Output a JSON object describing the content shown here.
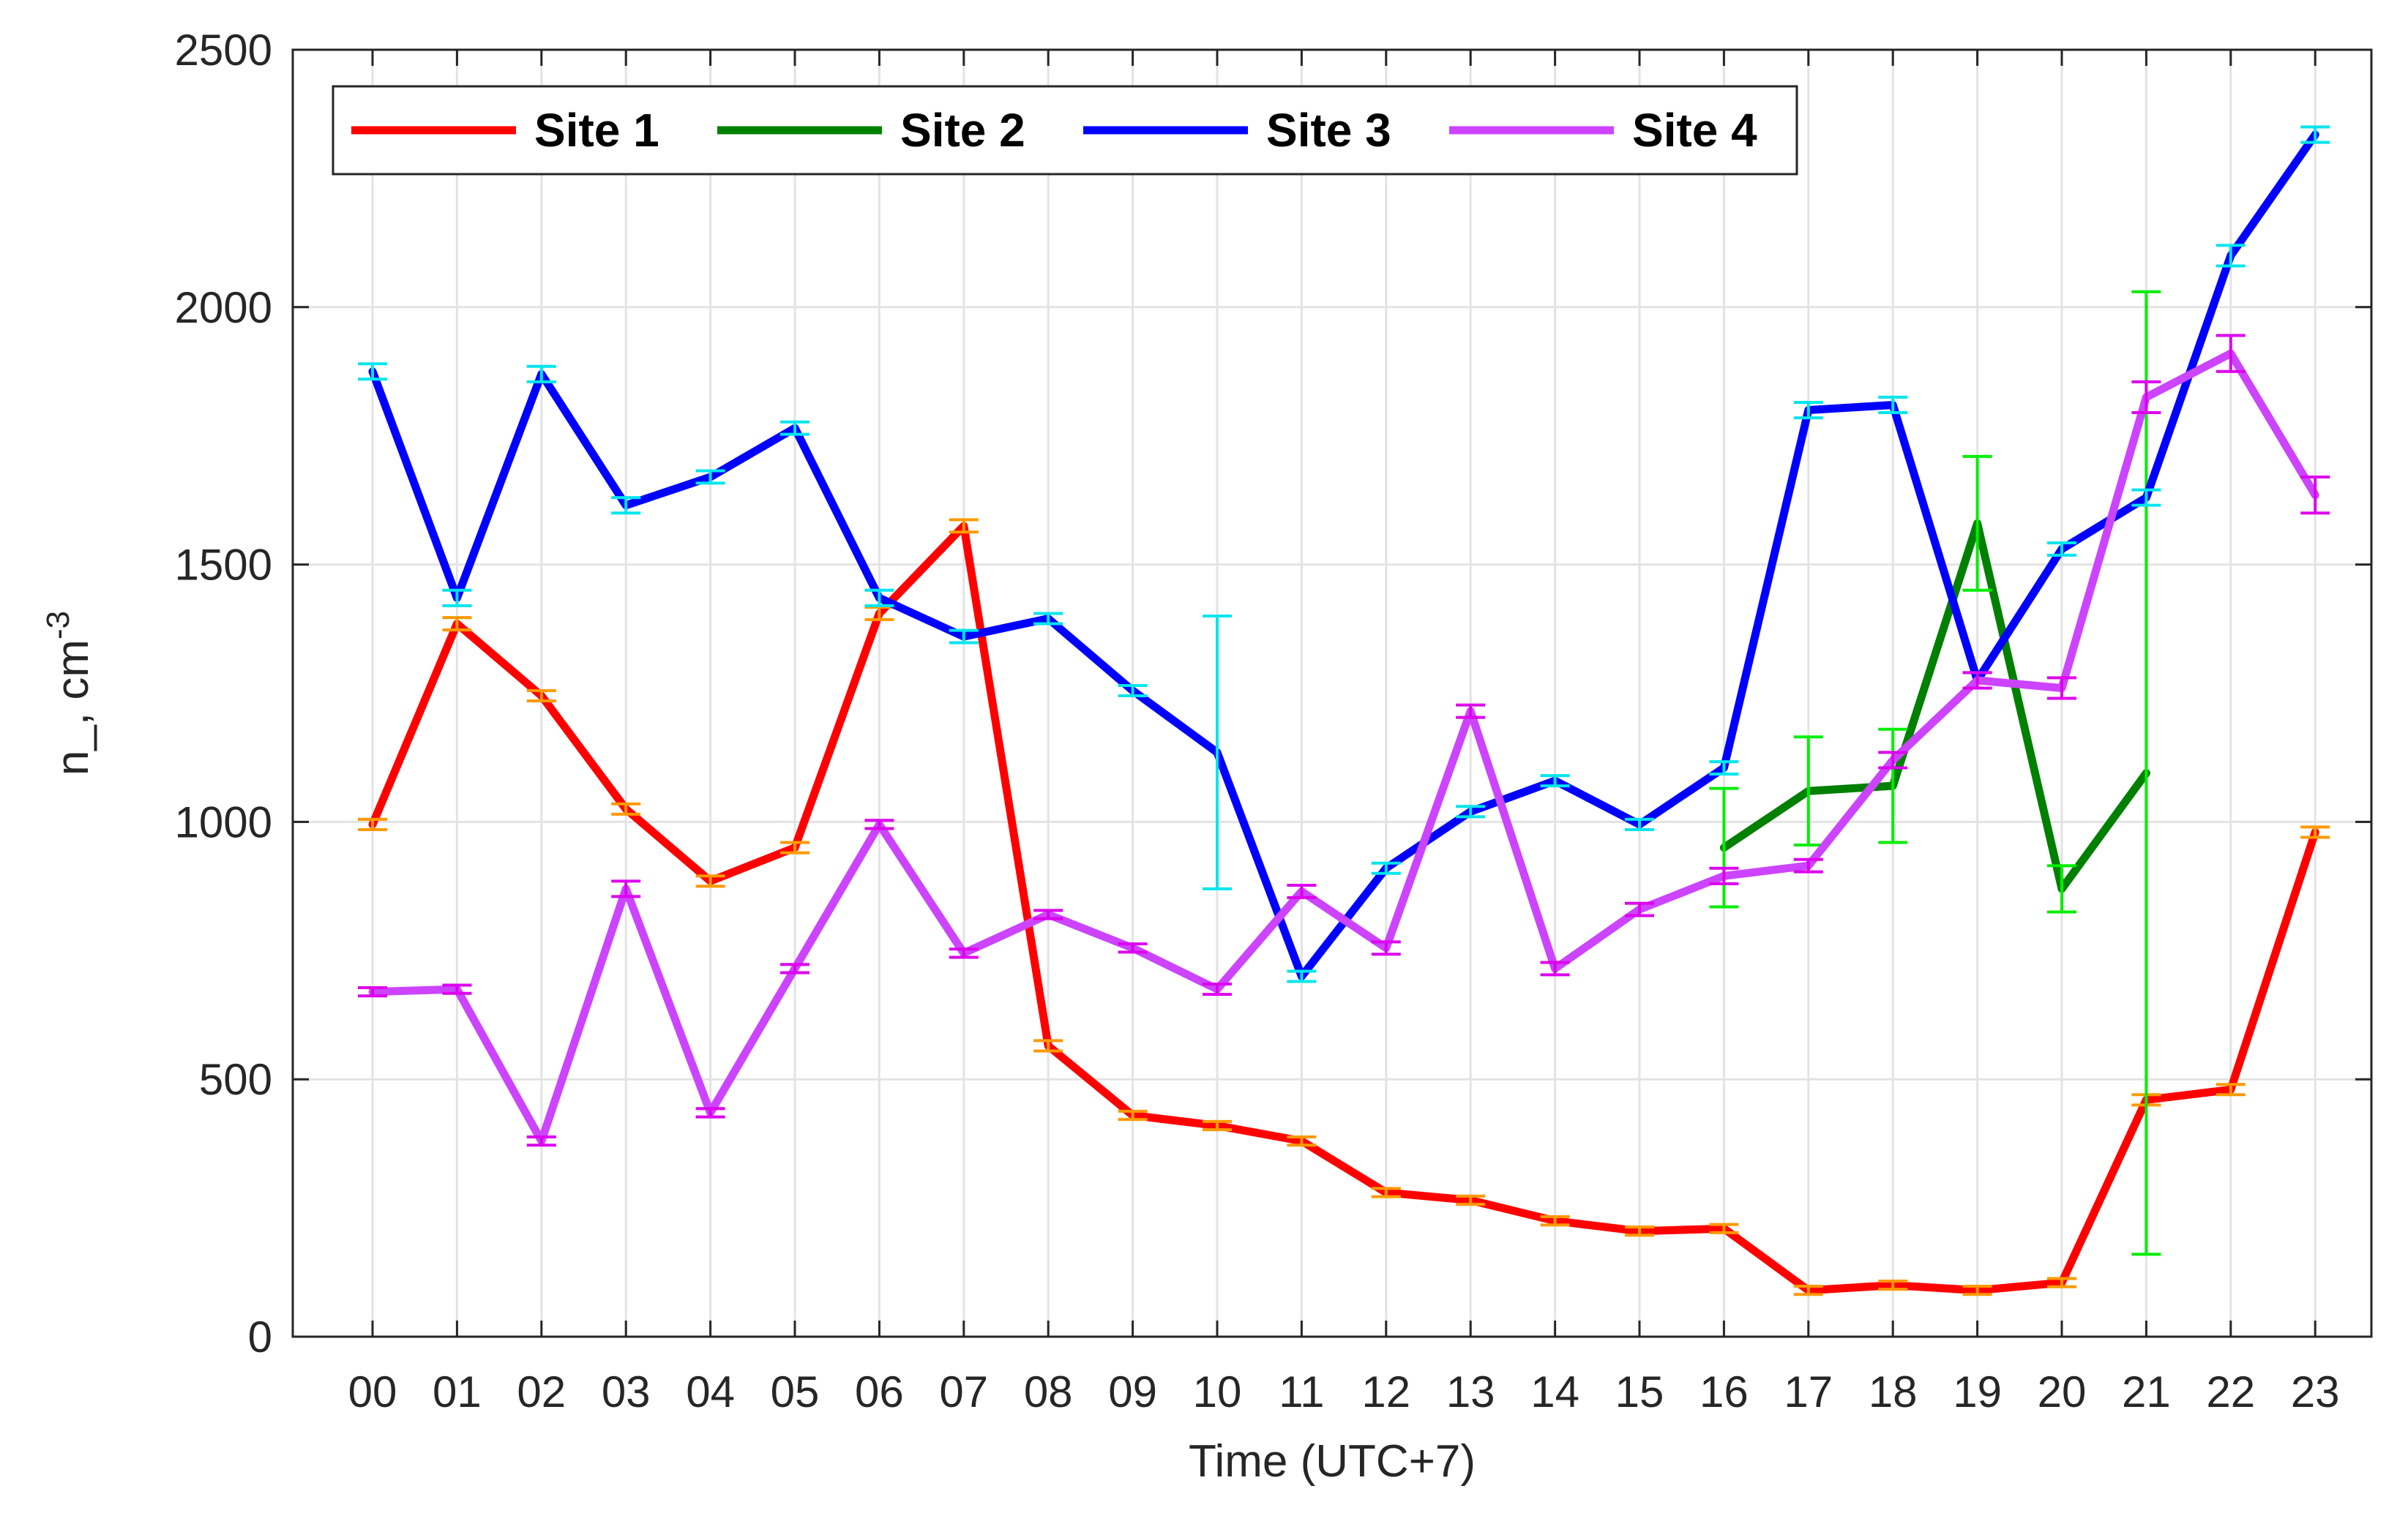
{
  "chart_data": {
    "type": "line",
    "title": "",
    "xlabel": "Time (UTC+7)",
    "ylabel": "n_, cm",
    "ylabel_superscript": "-3",
    "categories": [
      "00",
      "01",
      "02",
      "03",
      "04",
      "05",
      "06",
      "07",
      "08",
      "09",
      "10",
      "11",
      "12",
      "13",
      "14",
      "15",
      "16",
      "17",
      "18",
      "19",
      "20",
      "21",
      "22",
      "23"
    ],
    "ylim": [
      0,
      2500
    ],
    "yticks": [
      0,
      500,
      1000,
      1500,
      2000,
      2500
    ],
    "grid": true,
    "legend_position": "top-left",
    "series": [
      {
        "name": "Site 1",
        "color": "#ff0000",
        "errorbar_color": "#ff9900",
        "values": [
          995,
          1385,
          1245,
          1025,
          885,
          950,
          1405,
          1575,
          565,
          430,
          410,
          380,
          280,
          265,
          225,
          205,
          210,
          90,
          100,
          90,
          105,
          460,
          480,
          980
        ],
        "errors": [
          10,
          12,
          10,
          10,
          10,
          10,
          12,
          12,
          10,
          8,
          8,
          8,
          8,
          8,
          8,
          8,
          8,
          8,
          8,
          8,
          8,
          10,
          10,
          10
        ]
      },
      {
        "name": "Site 2",
        "color": "#008000",
        "errorbar_color": "#00ee00",
        "values": [
          null,
          null,
          null,
          null,
          null,
          null,
          null,
          null,
          null,
          null,
          null,
          null,
          null,
          null,
          null,
          null,
          950,
          1060,
          1070,
          1580,
          870,
          1095,
          null,
          null
        ],
        "errors": [
          null,
          null,
          null,
          null,
          null,
          null,
          null,
          null,
          null,
          null,
          null,
          null,
          null,
          null,
          null,
          null,
          115,
          105,
          110,
          130,
          45,
          935,
          null,
          null
        ]
      },
      {
        "name": "Site 3",
        "color": "#0000ff",
        "errorbar_color": "#00e5ee",
        "values": [
          1875,
          1435,
          1870,
          1615,
          1670,
          1765,
          1435,
          1360,
          1395,
          1255,
          1135,
          700,
          910,
          1020,
          1080,
          995,
          1105,
          1800,
          1810,
          1275,
          1530,
          1630,
          2100,
          2335
        ],
        "errors": [
          15,
          15,
          15,
          15,
          12,
          12,
          15,
          12,
          10,
          10,
          265,
          10,
          10,
          10,
          10,
          10,
          12,
          15,
          15,
          15,
          12,
          15,
          20,
          15
        ]
      },
      {
        "name": "Site 4",
        "color": "#cc44ff",
        "errorbar_color": "#dd00ee",
        "values": [
          670,
          675,
          380,
          870,
          435,
          715,
          995,
          745,
          820,
          755,
          675,
          865,
          755,
          1215,
          715,
          830,
          895,
          915,
          1120,
          1275,
          1260,
          1825,
          1910,
          1635
        ],
        "errors": [
          8,
          8,
          8,
          15,
          8,
          8,
          8,
          8,
          8,
          8,
          10,
          12,
          12,
          12,
          12,
          12,
          15,
          12,
          15,
          15,
          20,
          30,
          35,
          35
        ]
      }
    ]
  }
}
